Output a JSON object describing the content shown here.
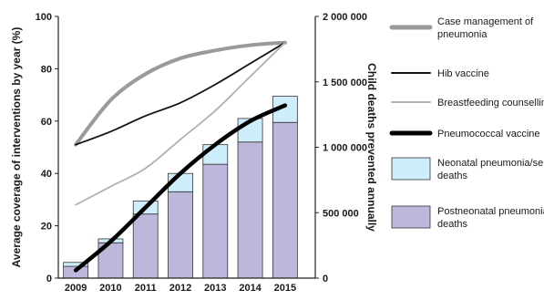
{
  "chart_data": {
    "type": "bar",
    "categories": [
      "2009",
      "2010",
      "2011",
      "2012",
      "2013",
      "2014",
      "2015"
    ],
    "title": "",
    "ylabel_left": "Average coverage of interventions by year (%)",
    "ylabel_right": "Child deaths prevented annually",
    "ylim_left": [
      0,
      100
    ],
    "ylim_right": [
      0,
      2000000
    ],
    "left_ticks": [
      "0",
      "20",
      "40",
      "60",
      "80",
      "100"
    ],
    "right_ticks": [
      "0",
      "500 000",
      "1 000 000",
      "1 500 000",
      "2 000 000"
    ],
    "grid": false,
    "legend_position": "right",
    "bar_series": [
      {
        "name": "Neonatal pneumonia/sepsis deaths",
        "color": "#cdeefa",
        "values": [
          30000,
          30000,
          100000,
          140000,
          150000,
          180000,
          200000
        ]
      },
      {
        "name": "Postneonatal pneumonia deaths",
        "color": "#bcb8dc",
        "values": [
          90000,
          270000,
          490000,
          660000,
          870000,
          1040000,
          1190000
        ]
      }
    ],
    "line_series": [
      {
        "name": "Case management of pneumonia",
        "color": "#9a9a9a",
        "width": 4,
        "values": [
          51,
          68,
          78,
          84,
          87,
          89,
          90
        ]
      },
      {
        "name": "Hib vaccine",
        "color": "#111111",
        "width": 1.8,
        "values": [
          51,
          56,
          62,
          67,
          74,
          82,
          90
        ]
      },
      {
        "name": "Breastfeeding counselling",
        "color": "#b0b0b0",
        "width": 1.8,
        "values": [
          28,
          35,
          42,
          53,
          64,
          77,
          90
        ]
      },
      {
        "name": "Pneumococcal vaccine",
        "color": "#000000",
        "width": 4.5,
        "values": [
          3,
          14,
          27,
          40,
          51,
          60,
          66
        ]
      }
    ],
    "legend": [
      {
        "kind": "line",
        "color": "#9a9a9a",
        "width": 5,
        "label": [
          "Case management of",
          "pneumonia"
        ]
      },
      {
        "kind": "line",
        "color": "#111111",
        "width": 2,
        "label": [
          "Hib vaccine"
        ]
      },
      {
        "kind": "line",
        "color": "#b0b0b0",
        "width": 2,
        "label": [
          "Breastfeeding counselling"
        ]
      },
      {
        "kind": "line",
        "color": "#000000",
        "width": 5,
        "label": [
          "Pneumococcal vaccine"
        ]
      },
      {
        "kind": "box",
        "color": "#cdeefa",
        "label": [
          "Neonatal pneumonia/sepsis",
          "deaths"
        ]
      },
      {
        "kind": "box",
        "color": "#bcb8dc",
        "label": [
          "Postneonatal pneumonia",
          "deaths"
        ]
      }
    ]
  }
}
